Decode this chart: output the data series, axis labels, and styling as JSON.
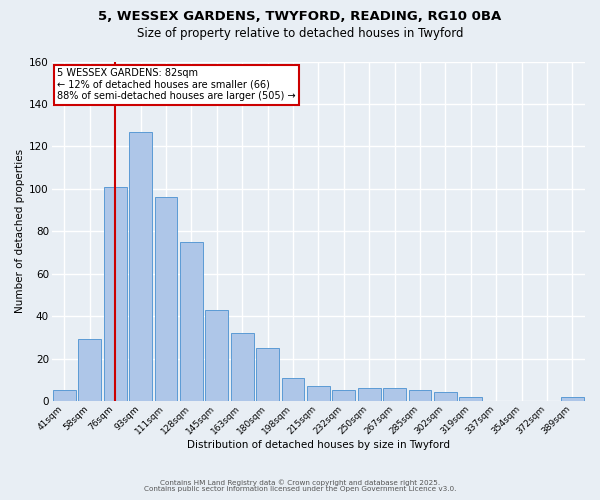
{
  "title_line1": "5, WESSEX GARDENS, TWYFORD, READING, RG10 0BA",
  "title_line2": "Size of property relative to detached houses in Twyford",
  "xlabel": "Distribution of detached houses by size in Twyford",
  "ylabel": "Number of detached properties",
  "bar_labels": [
    "41sqm",
    "58sqm",
    "76sqm",
    "93sqm",
    "111sqm",
    "128sqm",
    "145sqm",
    "163sqm",
    "180sqm",
    "198sqm",
    "215sqm",
    "232sqm",
    "250sqm",
    "267sqm",
    "285sqm",
    "302sqm",
    "319sqm",
    "337sqm",
    "354sqm",
    "372sqm",
    "389sqm"
  ],
  "bar_values": [
    5,
    29,
    101,
    127,
    96,
    75,
    43,
    32,
    25,
    11,
    7,
    5,
    6,
    6,
    5,
    4,
    2,
    0,
    0,
    0,
    2
  ],
  "bar_color": "#aec6e8",
  "bar_edgecolor": "#5b9bd5",
  "vline_x_index": 2,
  "vline_color": "#cc0000",
  "ylim": [
    0,
    160
  ],
  "yticks": [
    0,
    20,
    40,
    60,
    80,
    100,
    120,
    140,
    160
  ],
  "annotation_title": "5 WESSEX GARDENS: 82sqm",
  "annotation_line2": "← 12% of detached houses are smaller (66)",
  "annotation_line3": "88% of semi-detached houses are larger (505) →",
  "annotation_box_edgecolor": "#cc0000",
  "footer_line1": "Contains HM Land Registry data © Crown copyright and database right 2025.",
  "footer_line2": "Contains public sector information licensed under the Open Government Licence v3.0.",
  "background_color": "#e8eef4",
  "grid_color": "#ffffff"
}
